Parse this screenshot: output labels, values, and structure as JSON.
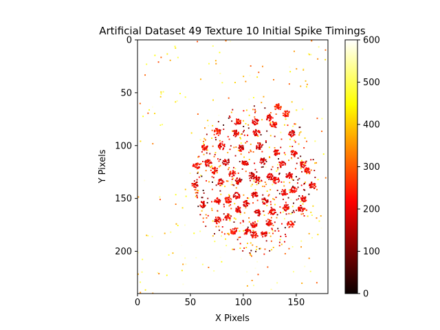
{
  "chart_data": {
    "type": "heatmap",
    "title": "Artificial Dataset 49 Texture 10 Initial Spike Timings",
    "xlabel": "X Pixels",
    "ylabel": "Y Pixels",
    "xlim": [
      0,
      180
    ],
    "ylim": [
      240,
      0
    ],
    "xticks": [
      "0",
      "50",
      "100",
      "150"
    ],
    "yticks": [
      "0",
      "50",
      "100",
      "150",
      "200"
    ],
    "colormap": "hot",
    "colorbar": {
      "range": [
        0,
        600
      ],
      "ticks": [
        "0",
        "100",
        "200",
        "300",
        "400",
        "500",
        "600"
      ]
    },
    "grid": false,
    "blobs": [
      {
        "x": 132,
        "y": 63,
        "v": 250
      },
      {
        "x": 140,
        "y": 69,
        "v": 250
      },
      {
        "x": 124,
        "y": 73,
        "v": 210
      },
      {
        "x": 94,
        "y": 77,
        "v": 220
      },
      {
        "x": 111,
        "y": 77,
        "v": 200
      },
      {
        "x": 128,
        "y": 79,
        "v": 230
      },
      {
        "x": 75,
        "y": 86,
        "v": 230
      },
      {
        "x": 92,
        "y": 88,
        "v": 210
      },
      {
        "x": 112,
        "y": 87,
        "v": 200
      },
      {
        "x": 145,
        "y": 88,
        "v": 180
      },
      {
        "x": 79,
        "y": 100,
        "v": 210
      },
      {
        "x": 97,
        "y": 102,
        "v": 190
      },
      {
        "x": 114,
        "y": 100,
        "v": 180
      },
      {
        "x": 131,
        "y": 106,
        "v": 210
      },
      {
        "x": 147,
        "y": 107,
        "v": 200
      },
      {
        "x": 63,
        "y": 101,
        "v": 220
      },
      {
        "x": 66,
        "y": 116,
        "v": 200
      },
      {
        "x": 83,
        "y": 115,
        "v": 190
      },
      {
        "x": 101,
        "y": 116,
        "v": 200
      },
      {
        "x": 118,
        "y": 114,
        "v": 170
      },
      {
        "x": 136,
        "y": 117,
        "v": 200
      },
      {
        "x": 156,
        "y": 117,
        "v": 210
      },
      {
        "x": 55,
        "y": 119,
        "v": 220
      },
      {
        "x": 72,
        "y": 123,
        "v": 230
      },
      {
        "x": 89,
        "y": 126,
        "v": 220
      },
      {
        "x": 107,
        "y": 128,
        "v": 180
      },
      {
        "x": 125,
        "y": 129,
        "v": 190
      },
      {
        "x": 143,
        "y": 128,
        "v": 200
      },
      {
        "x": 160,
        "y": 123,
        "v": 220
      },
      {
        "x": 54,
        "y": 136,
        "v": 200
      },
      {
        "x": 78,
        "y": 134,
        "v": 200
      },
      {
        "x": 95,
        "y": 133,
        "v": 190
      },
      {
        "x": 112,
        "y": 131,
        "v": 180
      },
      {
        "x": 130,
        "y": 132,
        "v": 190
      },
      {
        "x": 147,
        "y": 141,
        "v": 200
      },
      {
        "x": 165,
        "y": 137,
        "v": 210
      },
      {
        "x": 61,
        "y": 155,
        "v": 200
      },
      {
        "x": 75,
        "y": 152,
        "v": 210
      },
      {
        "x": 93,
        "y": 147,
        "v": 200
      },
      {
        "x": 110,
        "y": 146,
        "v": 190
      },
      {
        "x": 138,
        "y": 144,
        "v": 200
      },
      {
        "x": 156,
        "y": 150,
        "v": 210
      },
      {
        "x": 85,
        "y": 151,
        "v": 220
      },
      {
        "x": 102,
        "y": 154,
        "v": 200
      },
      {
        "x": 120,
        "y": 152,
        "v": 190
      },
      {
        "x": 140,
        "y": 158,
        "v": 200
      },
      {
        "x": 154,
        "y": 159,
        "v": 210
      },
      {
        "x": 95,
        "y": 160,
        "v": 200
      },
      {
        "x": 113,
        "y": 163,
        "v": 190
      },
      {
        "x": 127,
        "y": 162,
        "v": 200
      },
      {
        "x": 75,
        "y": 170,
        "v": 210
      },
      {
        "x": 85,
        "y": 167,
        "v": 200
      },
      {
        "x": 109,
        "y": 174,
        "v": 200
      },
      {
        "x": 124,
        "y": 172,
        "v": 210
      },
      {
        "x": 144,
        "y": 174,
        "v": 220
      },
      {
        "x": 90,
        "y": 180,
        "v": 230
      },
      {
        "x": 104,
        "y": 181,
        "v": 220
      },
      {
        "x": 119,
        "y": 183,
        "v": 200
      },
      {
        "x": 110,
        "y": 184,
        "v": 210
      }
    ],
    "blob_area": {
      "x": [
        52,
        170
      ],
      "y": [
        60,
        205
      ]
    },
    "speckle_area": {
      "x": [
        0,
        178
      ],
      "y": [
        0,
        240
      ]
    }
  }
}
